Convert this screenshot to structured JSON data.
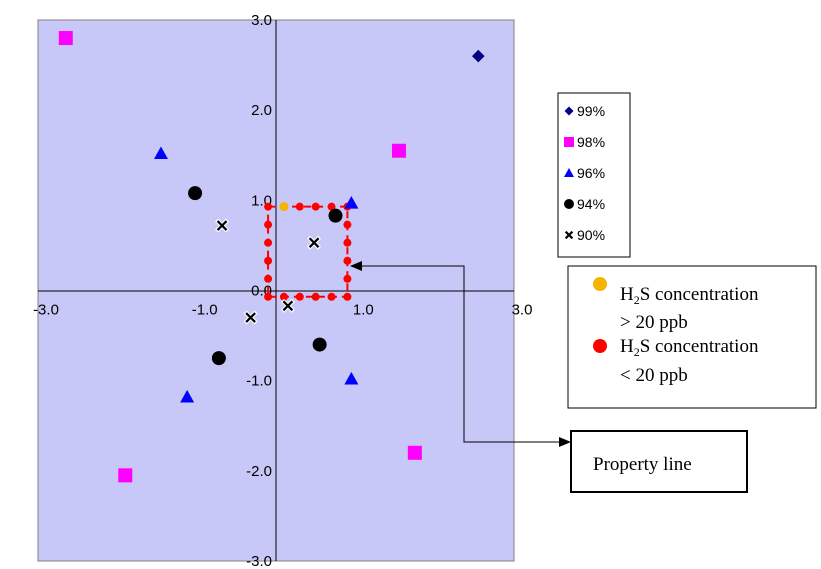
{
  "chart_data": {
    "type": "scatter",
    "xlim": [
      -3.0,
      3.0
    ],
    "ylim": [
      -3.0,
      3.0
    ],
    "x_tick_labels": [
      "-3.0",
      "-1.0",
      "1.0",
      "3.0"
    ],
    "x_tick_values": [
      -3.0,
      -1.0,
      1.0,
      3.0
    ],
    "y_tick_labels": [
      "3.0",
      "2.0",
      "1.0",
      "0.0",
      "-1.0",
      "-2.0",
      "-3.0"
    ],
    "y_tick_values": [
      3.0,
      2.0,
      1.0,
      0.0,
      -1.0,
      -2.0,
      -3.0
    ],
    "grid": false,
    "plot_background": "#c8c8f8",
    "legend_position": "right",
    "series": [
      {
        "name": "99%",
        "marker": "diamond",
        "color": "#000080",
        "points": [
          [
            2.55,
            2.6
          ]
        ]
      },
      {
        "name": "98%",
        "marker": "square",
        "color": "#ff00ff",
        "points": [
          [
            -2.65,
            2.8
          ],
          [
            1.55,
            1.55
          ],
          [
            -1.9,
            -2.05
          ],
          [
            1.75,
            -1.8
          ]
        ]
      },
      {
        "name": "96%",
        "marker": "triangle",
        "color": "#0000ff",
        "points": [
          [
            -1.45,
            1.52
          ],
          [
            0.95,
            0.97
          ],
          [
            0.95,
            -0.98
          ],
          [
            -1.12,
            -1.18
          ]
        ]
      },
      {
        "name": "94%",
        "marker": "circle",
        "color": "#000000",
        "points": [
          [
            -1.02,
            1.08
          ],
          [
            0.75,
            0.83
          ],
          [
            -0.72,
            -0.75
          ],
          [
            0.55,
            -0.6
          ]
        ]
      },
      {
        "name": "90%",
        "marker": "x",
        "color": "#000000",
        "points": [
          [
            -0.68,
            0.72
          ],
          [
            0.48,
            0.53
          ],
          [
            -0.32,
            -0.3
          ],
          [
            0.15,
            -0.17
          ]
        ]
      }
    ],
    "h2s_monitors": {
      "above_20ppb": {
        "color": "#f5b400",
        "points": [
          [
            0.1,
            0.93
          ]
        ]
      },
      "below_20ppb": {
        "color": "#ff0000",
        "points": [
          [
            -0.1,
            0.93
          ],
          [
            0.3,
            0.93
          ],
          [
            0.5,
            0.93
          ],
          [
            0.7,
            0.93
          ],
          [
            0.9,
            0.93
          ],
          [
            -0.1,
            0.73
          ],
          [
            0.9,
            0.73
          ],
          [
            -0.1,
            0.53
          ],
          [
            0.9,
            0.53
          ],
          [
            -0.1,
            0.33
          ],
          [
            0.9,
            0.33
          ],
          [
            -0.1,
            0.13
          ],
          [
            0.9,
            0.13
          ],
          [
            -0.1,
            -0.07
          ],
          [
            0.1,
            -0.07
          ],
          [
            0.3,
            -0.07
          ],
          [
            0.5,
            -0.07
          ],
          [
            0.7,
            -0.07
          ],
          [
            0.9,
            -0.07
          ]
        ]
      },
      "property_line": {
        "x": [
          -0.1,
          0.9
        ],
        "y": [
          -0.07,
          0.93
        ],
        "color": "#ff0000"
      }
    }
  },
  "legend": {
    "items": [
      {
        "label": "99%",
        "marker": "diamond",
        "color": "#000080"
      },
      {
        "label": "98%",
        "marker": "square",
        "color": "#ff00ff"
      },
      {
        "label": "96%",
        "marker": "triangle",
        "color": "#0000ff"
      },
      {
        "label": "94%",
        "marker": "circle",
        "color": "#000000"
      },
      {
        "label": "90%",
        "marker": "x",
        "color": "#000000"
      }
    ]
  },
  "h2s_legend": {
    "above": {
      "prefix": "H",
      "sub": "2",
      "suffix": "S concentration",
      "line2": "> 20 ppb",
      "color": "#f5b400"
    },
    "below": {
      "prefix": "H",
      "sub": "2",
      "suffix": "S concentration",
      "line2": "< 20 ppb",
      "color": "#ff0000"
    }
  },
  "callout": {
    "label": "Property line"
  }
}
